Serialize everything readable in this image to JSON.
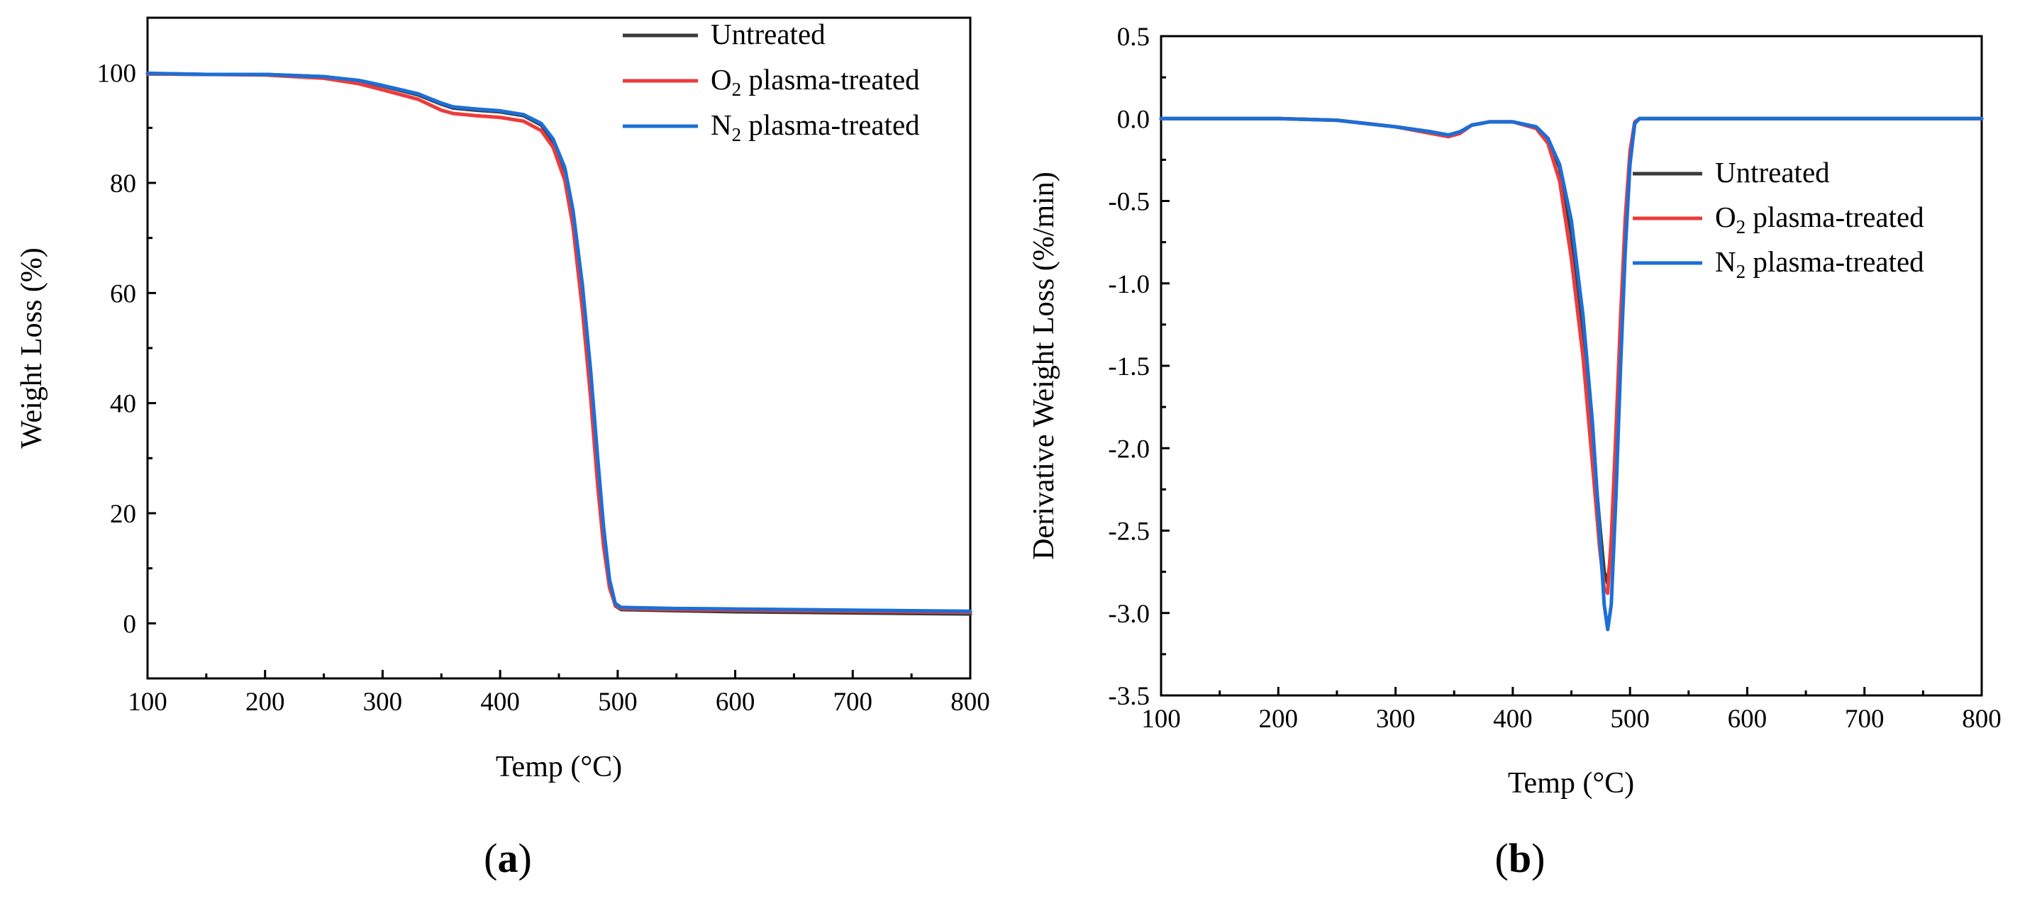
{
  "chart_data": [
    {
      "panel": "a",
      "type": "line",
      "panel_label": "a",
      "xlabel": "Temp (°C)",
      "ylabel": "Weight Loss (%)",
      "xlim": [
        100,
        800
      ],
      "ylim": [
        -10,
        110
      ],
      "xticks": [
        100,
        200,
        300,
        400,
        500,
        600,
        700,
        800
      ],
      "yticks": [
        0,
        20,
        40,
        60,
        80,
        100
      ],
      "xtick_labels": [
        "100",
        "200",
        "300",
        "400",
        "500",
        "600",
        "700",
        "800"
      ],
      "ytick_labels": [
        "0",
        "20",
        "40",
        "60",
        "80",
        "100"
      ],
      "legend_position": "top-right",
      "series": [
        {
          "name": "Untreated",
          "legend_main": "Untreated",
          "legend_sub": "",
          "legend_suffix": "",
          "color": "#3a3a3a",
          "points": [
            [
              100,
              99.8
            ],
            [
              150,
              99.7
            ],
            [
              200,
              99.7
            ],
            [
              250,
              99.3
            ],
            [
              280,
              98.5
            ],
            [
              300,
              97.6
            ],
            [
              330,
              96.0
            ],
            [
              350,
              94.3
            ],
            [
              360,
              93.6
            ],
            [
              380,
              93.2
            ],
            [
              400,
              92.9
            ],
            [
              420,
              92.2
            ],
            [
              435,
              90.5
            ],
            [
              445,
              87.5
            ],
            [
              455,
              82.0
            ],
            [
              462,
              74.0
            ],
            [
              470,
              60.0
            ],
            [
              477,
              44.0
            ],
            [
              483,
              28.0
            ],
            [
              488,
              16.0
            ],
            [
              493,
              7.0
            ],
            [
              498,
              3.2
            ],
            [
              503,
              2.5
            ],
            [
              550,
              2.3
            ],
            [
              600,
              2.1
            ],
            [
              700,
              1.9
            ],
            [
              800,
              1.7
            ]
          ]
        },
        {
          "name": "O2 plasma-treated",
          "legend_main": "O",
          "legend_sub": "2",
          "legend_suffix": " plasma-treated",
          "color": "#ee3b3b",
          "points": [
            [
              100,
              99.8
            ],
            [
              150,
              99.7
            ],
            [
              200,
              99.6
            ],
            [
              250,
              99.0
            ],
            [
              280,
              98.0
            ],
            [
              300,
              96.9
            ],
            [
              330,
              95.2
            ],
            [
              350,
              93.2
            ],
            [
              360,
              92.6
            ],
            [
              380,
              92.2
            ],
            [
              400,
              91.9
            ],
            [
              420,
              91.2
            ],
            [
              435,
              89.5
            ],
            [
              445,
              86.5
            ],
            [
              455,
              80.5
            ],
            [
              462,
              72.0
            ],
            [
              470,
              57.0
            ],
            [
              477,
              41.0
            ],
            [
              483,
              25.0
            ],
            [
              488,
              14.0
            ],
            [
              493,
              6.5
            ],
            [
              498,
              3.3
            ],
            [
              503,
              2.7
            ],
            [
              550,
              2.5
            ],
            [
              600,
              2.4
            ],
            [
              700,
              2.2
            ],
            [
              800,
              2.0
            ]
          ]
        },
        {
          "name": "N2 plasma-treated",
          "legend_main": "N",
          "legend_sub": "2",
          "legend_suffix": " plasma-treated",
          "color": "#1c6fd6",
          "points": [
            [
              100,
              99.9
            ],
            [
              150,
              99.7
            ],
            [
              200,
              99.7
            ],
            [
              250,
              99.3
            ],
            [
              280,
              98.6
            ],
            [
              300,
              97.7
            ],
            [
              330,
              96.2
            ],
            [
              350,
              94.5
            ],
            [
              360,
              93.8
            ],
            [
              380,
              93.4
            ],
            [
              400,
              93.1
            ],
            [
              420,
              92.4
            ],
            [
              435,
              90.8
            ],
            [
              445,
              88.0
            ],
            [
              455,
              82.8
            ],
            [
              462,
              75.0
            ],
            [
              470,
              61.5
            ],
            [
              477,
              46.0
            ],
            [
              483,
              30.0
            ],
            [
              488,
              17.5
            ],
            [
              493,
              8.0
            ],
            [
              498,
              3.6
            ],
            [
              503,
              2.9
            ],
            [
              550,
              2.7
            ],
            [
              600,
              2.6
            ],
            [
              700,
              2.4
            ],
            [
              800,
              2.2
            ]
          ]
        }
      ]
    },
    {
      "panel": "b",
      "type": "line",
      "panel_label": "b",
      "xlabel": "Temp (°C)",
      "ylabel": "Derivative Weight Loss (%/min)",
      "xlim": [
        100,
        800
      ],
      "ylim": [
        -3.5,
        0.5
      ],
      "xticks": [
        100,
        200,
        300,
        400,
        500,
        600,
        700,
        800
      ],
      "yticks": [
        0.5,
        0.0,
        -0.5,
        -1.0,
        -1.5,
        -2.0,
        -2.5,
        -3.0,
        -3.5
      ],
      "xtick_labels": [
        "100",
        "200",
        "300",
        "400",
        "500",
        "600",
        "700",
        "800"
      ],
      "ytick_labels": [
        "0.5",
        "0.0",
        "-0.5",
        "-1.0",
        "-1.5",
        "-2.0",
        "-2.5",
        "-3.0",
        "-3.5"
      ],
      "legend_position": "center-right",
      "series": [
        {
          "name": "Untreated",
          "legend_main": "Untreated",
          "legend_sub": "",
          "legend_suffix": "",
          "color": "#3a3a3a",
          "points": [
            [
              100,
              0.0
            ],
            [
              200,
              0.0
            ],
            [
              250,
              -0.01
            ],
            [
              300,
              -0.05
            ],
            [
              330,
              -0.08
            ],
            [
              345,
              -0.1
            ],
            [
              355,
              -0.08
            ],
            [
              365,
              -0.04
            ],
            [
              380,
              -0.02
            ],
            [
              400,
              -0.02
            ],
            [
              420,
              -0.05
            ],
            [
              430,
              -0.12
            ],
            [
              440,
              -0.3
            ],
            [
              450,
              -0.7
            ],
            [
              460,
              -1.3
            ],
            [
              468,
              -1.95
            ],
            [
              474,
              -2.45
            ],
            [
              478,
              -2.75
            ],
            [
              481,
              -2.82
            ],
            [
              484,
              -2.6
            ],
            [
              488,
              -2.0
            ],
            [
              492,
              -1.3
            ],
            [
              496,
              -0.7
            ],
            [
              500,
              -0.25
            ],
            [
              504,
              -0.03
            ],
            [
              508,
              0.0
            ],
            [
              600,
              0.0
            ],
            [
              700,
              0.0
            ],
            [
              800,
              0.0
            ]
          ]
        },
        {
          "name": "O2 plasma-treated",
          "legend_main": "O",
          "legend_sub": "2",
          "legend_suffix": " plasma-treated",
          "color": "#ee3b3b",
          "points": [
            [
              100,
              0.0
            ],
            [
              200,
              0.0
            ],
            [
              250,
              -0.01
            ],
            [
              300,
              -0.05
            ],
            [
              330,
              -0.09
            ],
            [
              345,
              -0.11
            ],
            [
              355,
              -0.09
            ],
            [
              365,
              -0.04
            ],
            [
              380,
              -0.02
            ],
            [
              400,
              -0.02
            ],
            [
              420,
              -0.06
            ],
            [
              430,
              -0.15
            ],
            [
              440,
              -0.38
            ],
            [
              450,
              -0.85
            ],
            [
              460,
              -1.45
            ],
            [
              468,
              -2.1
            ],
            [
              474,
              -2.6
            ],
            [
              478,
              -2.85
            ],
            [
              481,
              -2.88
            ],
            [
              484,
              -2.55
            ],
            [
              488,
              -1.9
            ],
            [
              492,
              -1.2
            ],
            [
              496,
              -0.6
            ],
            [
              500,
              -0.2
            ],
            [
              504,
              -0.02
            ],
            [
              508,
              0.0
            ],
            [
              600,
              0.0
            ],
            [
              700,
              0.0
            ],
            [
              800,
              0.0
            ]
          ]
        },
        {
          "name": "N2 plasma-treated",
          "legend_main": "N",
          "legend_sub": "2",
          "legend_suffix": " plasma-treated",
          "color": "#1c6fd6",
          "points": [
            [
              100,
              0.0
            ],
            [
              200,
              0.0
            ],
            [
              250,
              -0.01
            ],
            [
              300,
              -0.05
            ],
            [
              330,
              -0.08
            ],
            [
              345,
              -0.1
            ],
            [
              355,
              -0.08
            ],
            [
              365,
              -0.04
            ],
            [
              380,
              -0.02
            ],
            [
              400,
              -0.02
            ],
            [
              420,
              -0.05
            ],
            [
              430,
              -0.12
            ],
            [
              440,
              -0.28
            ],
            [
              450,
              -0.62
            ],
            [
              460,
              -1.2
            ],
            [
              468,
              -1.85
            ],
            [
              474,
              -2.5
            ],
            [
              478,
              -2.95
            ],
            [
              481,
              -3.1
            ],
            [
              484,
              -2.95
            ],
            [
              488,
              -2.3
            ],
            [
              492,
              -1.5
            ],
            [
              496,
              -0.8
            ],
            [
              500,
              -0.28
            ],
            [
              504,
              -0.03
            ],
            [
              508,
              0.0
            ],
            [
              600,
              0.0
            ],
            [
              700,
              0.0
            ],
            [
              800,
              0.0
            ]
          ]
        }
      ]
    }
  ]
}
